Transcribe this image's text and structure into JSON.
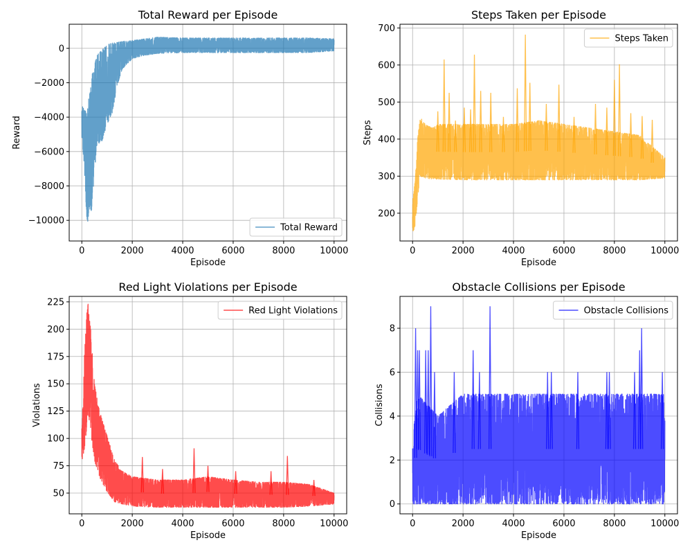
{
  "chart_data": [
    {
      "type": "line",
      "title": "Total Reward per Episode",
      "xlabel": "Episode",
      "ylabel": "Reward",
      "xlim": [
        -500,
        10500
      ],
      "ylim": [
        -11200,
        1400
      ],
      "xticks": [
        0,
        2000,
        4000,
        6000,
        8000,
        10000
      ],
      "yticks": [
        -10000,
        -8000,
        -6000,
        -4000,
        -2000,
        0
      ],
      "ytick_labels": [
        "−10000",
        "−8000",
        "−6000",
        "−4000",
        "−2000",
        "0"
      ],
      "grid": true,
      "legend": "bottom-right",
      "series": [
        {
          "name": "Total Reward",
          "color": "#1f77b4",
          "band": [
            [
              0,
              -5200,
              -3300
            ],
            [
              100,
              -6800,
              -3600
            ],
            [
              200,
              -10500,
              -3700
            ],
            [
              300,
              -9300,
              -2600
            ],
            [
              400,
              -9500,
              -1600
            ],
            [
              500,
              -7300,
              -900
            ],
            [
              600,
              -5600,
              -400
            ],
            [
              800,
              -5400,
              -100
            ],
            [
              1000,
              -4400,
              200
            ],
            [
              1200,
              -3800,
              300
            ],
            [
              1400,
              -2200,
              350
            ],
            [
              1600,
              -1200,
              400
            ],
            [
              2000,
              -600,
              450
            ],
            [
              2500,
              -400,
              550
            ],
            [
              3000,
              -300,
              650
            ],
            [
              4000,
              -250,
              600
            ],
            [
              5000,
              -250,
              600
            ],
            [
              6000,
              -250,
              600
            ],
            [
              7000,
              -250,
              600
            ],
            [
              8000,
              -250,
              600
            ],
            [
              9000,
              -250,
              600
            ],
            [
              10000,
              -150,
              550
            ]
          ]
        }
      ]
    },
    {
      "type": "line",
      "title": "Steps Taken per Episode",
      "xlabel": "Episode",
      "ylabel": "Steps",
      "xlim": [
        -500,
        10500
      ],
      "ylim": [
        125,
        710
      ],
      "xticks": [
        0,
        2000,
        4000,
        6000,
        8000,
        10000
      ],
      "yticks": [
        200,
        300,
        400,
        500,
        600,
        700
      ],
      "grid": true,
      "legend": "top-right",
      "series": [
        {
          "name": "Steps Taken",
          "color": "#ffa500",
          "band": [
            [
              0,
              150,
              230
            ],
            [
              100,
              160,
              290
            ],
            [
              200,
              240,
              400
            ],
            [
              300,
              300,
              460
            ],
            [
              500,
              295,
              440
            ],
            [
              800,
              292,
              430
            ],
            [
              1000,
              292,
              440
            ],
            [
              2000,
              290,
              440
            ],
            [
              3000,
              290,
              440
            ],
            [
              4000,
              290,
              440
            ],
            [
              5000,
              290,
              450
            ],
            [
              6000,
              290,
              440
            ],
            [
              7000,
              290,
              430
            ],
            [
              8000,
              290,
              420
            ],
            [
              9000,
              290,
              410
            ],
            [
              10000,
              295,
              350
            ]
          ],
          "spikes": [
            [
              1000,
              475
            ],
            [
              1250,
              615
            ],
            [
              1450,
              525
            ],
            [
              1700,
              450
            ],
            [
              2050,
              485
            ],
            [
              2300,
              480
            ],
            [
              2450,
              628
            ],
            [
              2700,
              530
            ],
            [
              3100,
              525
            ],
            [
              3600,
              460
            ],
            [
              4150,
              537
            ],
            [
              4470,
              682
            ],
            [
              4650,
              552
            ],
            [
              5300,
              495
            ],
            [
              5800,
              547
            ],
            [
              6400,
              460
            ],
            [
              7250,
              495
            ],
            [
              7700,
              485
            ],
            [
              8000,
              560
            ],
            [
              8200,
              602
            ],
            [
              8650,
              470
            ],
            [
              9100,
              462
            ],
            [
              9500,
              452
            ]
          ]
        }
      ]
    },
    {
      "type": "line",
      "title": "Red Light Violations per Episode",
      "xlabel": "Episode",
      "ylabel": "Violations",
      "xlim": [
        -500,
        10500
      ],
      "ylim": [
        31,
        230
      ],
      "xticks": [
        0,
        2000,
        4000,
        6000,
        8000,
        10000
      ],
      "yticks": [
        50,
        75,
        100,
        125,
        150,
        175,
        200,
        225
      ],
      "grid": true,
      "legend": "top-right",
      "series": [
        {
          "name": "Red Light Violations",
          "color": "#ff0000",
          "band": [
            [
              0,
              72,
              110
            ],
            [
              100,
              90,
              175
            ],
            [
              200,
              110,
              215
            ],
            [
              250,
              125,
              224
            ],
            [
              350,
              105,
              200
            ],
            [
              500,
              80,
              150
            ],
            [
              700,
              65,
              125
            ],
            [
              900,
              55,
              110
            ],
            [
              1100,
              48,
              95
            ],
            [
              1300,
              42,
              80
            ],
            [
              1600,
              40,
              70
            ],
            [
              2000,
              38,
              65
            ],
            [
              3000,
              37,
              62
            ],
            [
              4000,
              37,
              62
            ],
            [
              5000,
              37,
              65
            ],
            [
              6000,
              37,
              62
            ],
            [
              7000,
              37,
              60
            ],
            [
              8000,
              37,
              60
            ],
            [
              9000,
              38,
              58
            ],
            [
              10000,
              40,
              50
            ]
          ],
          "spikes": [
            [
              2400,
              83
            ],
            [
              3200,
              72
            ],
            [
              4450,
              91
            ],
            [
              5000,
              75
            ],
            [
              6100,
              70
            ],
            [
              7500,
              70
            ],
            [
              8150,
              84
            ],
            [
              9200,
              62
            ]
          ]
        }
      ]
    },
    {
      "type": "line",
      "title": "Obstacle Collisions per Episode",
      "xlabel": "Episode",
      "ylabel": "Collisions",
      "xlim": [
        -500,
        10500
      ],
      "ylim": [
        -0.45,
        9.45
      ],
      "xticks": [
        0,
        2000,
        4000,
        6000,
        8000,
        10000
      ],
      "yticks": [
        0,
        2,
        4,
        6,
        8
      ],
      "grid": true,
      "legend": "top-right",
      "series": [
        {
          "name": "Obstacle Collisions",
          "color": "#0000ff",
          "band": [
            [
              0,
              0,
              3
            ],
            [
              100,
              0,
              4
            ],
            [
              200,
              0,
              5
            ],
            [
              1000,
              0,
              4
            ],
            [
              2000,
              0,
              5
            ],
            [
              10000,
              0,
              5
            ]
          ],
          "spikes": [
            [
              120,
              8
            ],
            [
              200,
              7
            ],
            [
              270,
              7
            ],
            [
              520,
              7
            ],
            [
              620,
              7
            ],
            [
              720,
              9
            ],
            [
              870,
              6
            ],
            [
              1650,
              6
            ],
            [
              2400,
              7
            ],
            [
              2650,
              6
            ],
            [
              3070,
              9
            ],
            [
              5350,
              6
            ],
            [
              5500,
              6
            ],
            [
              6550,
              6
            ],
            [
              7700,
              6
            ],
            [
              7800,
              6
            ],
            [
              8800,
              6
            ],
            [
              9000,
              7
            ],
            [
              9080,
              8
            ],
            [
              9900,
              6
            ]
          ]
        }
      ]
    }
  ]
}
